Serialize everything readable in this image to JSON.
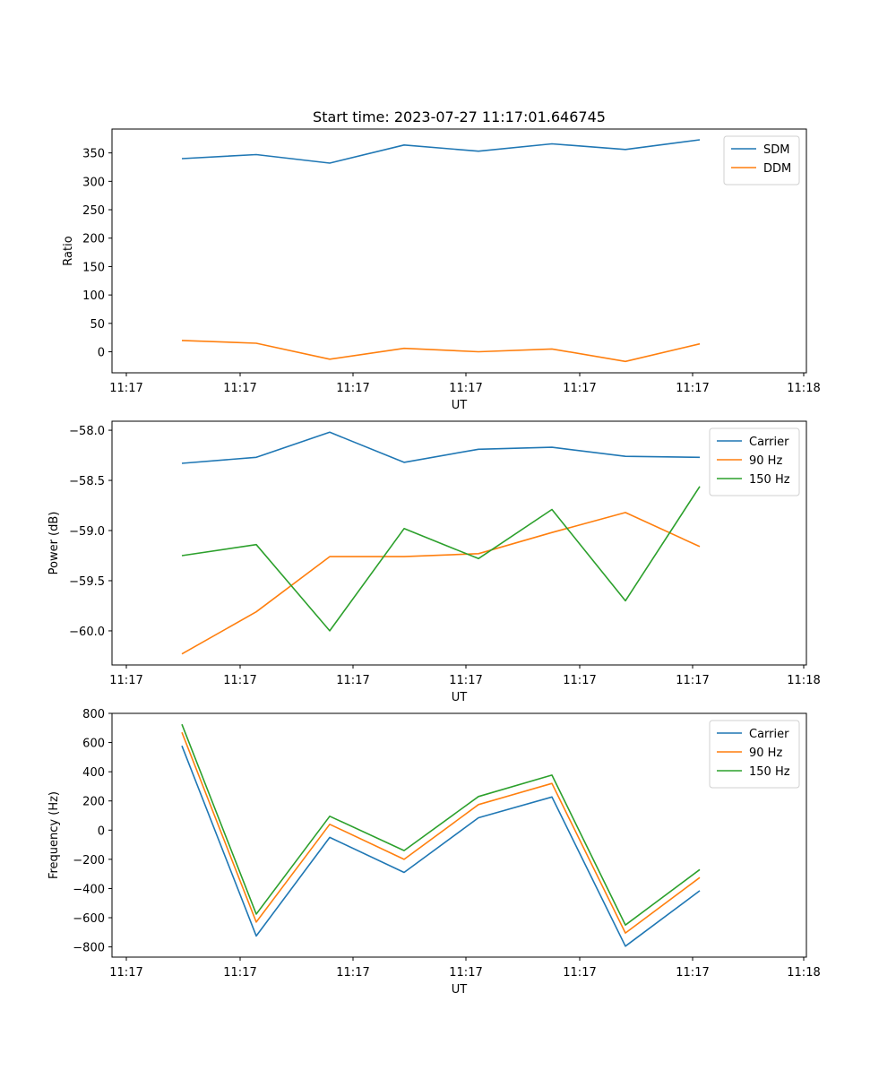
{
  "colors": {
    "blue": "#1f77b4",
    "orange": "#ff7f0e",
    "green": "#2ca02c"
  },
  "chart_data": [
    {
      "type": "line",
      "title": "Start time: 2023-07-27 11:17:01.646745",
      "xlabel": "UT",
      "ylabel": "Ratio",
      "x_tick_labels": [
        "11:17",
        "11:17",
        "11:17",
        "11:17",
        "11:17",
        "11:17",
        "11:18"
      ],
      "ylim": [
        -37,
        392
      ],
      "yticks": [
        0,
        50,
        100,
        150,
        200,
        250,
        300,
        350
      ],
      "legend": "top-right",
      "series": [
        {
          "name": "SDM",
          "color": "#1f77b4",
          "values": [
            340,
            347,
            332,
            364,
            353,
            366,
            356,
            373
          ]
        },
        {
          "name": "DDM",
          "color": "#ff7f0e",
          "values": [
            20,
            15,
            -13,
            6,
            0,
            5,
            -17,
            14
          ]
        }
      ]
    },
    {
      "type": "line",
      "title": "",
      "xlabel": "UT",
      "ylabel": "Power (dB)",
      "x_tick_labels": [
        "11:17",
        "11:17",
        "11:17",
        "11:17",
        "11:17",
        "11:17",
        "11:18"
      ],
      "ylim": [
        -60.34,
        -57.91
      ],
      "yticks": [
        -60.0,
        -59.5,
        -59.0,
        -58.5,
        -58.0
      ],
      "legend": "top-right",
      "series": [
        {
          "name": "Carrier",
          "color": "#1f77b4",
          "values": [
            -58.33,
            -58.27,
            -58.02,
            -58.32,
            -58.19,
            -58.17,
            -58.26,
            -58.27
          ]
        },
        {
          "name": "90 Hz",
          "color": "#ff7f0e",
          "values": [
            -60.23,
            -59.81,
            -59.26,
            -59.26,
            -59.23,
            -59.02,
            -58.82,
            -59.16
          ]
        },
        {
          "name": "150 Hz",
          "color": "#2ca02c",
          "values": [
            -59.25,
            -59.14,
            -60.0,
            -58.98,
            -59.28,
            -58.79,
            -59.7,
            -58.56
          ]
        }
      ]
    },
    {
      "type": "line",
      "title": "",
      "xlabel": "UT",
      "ylabel": "Frequency (Hz)",
      "x_tick_labels": [
        "11:17",
        "11:17",
        "11:17",
        "11:17",
        "11:17",
        "11:17",
        "11:18"
      ],
      "ylim": [
        -870,
        800
      ],
      "yticks": [
        -800,
        -600,
        -400,
        -200,
        0,
        200,
        400,
        600,
        800
      ],
      "legend": "top-right",
      "series": [
        {
          "name": "Carrier",
          "color": "#1f77b4",
          "values": [
            578,
            -725,
            -50,
            -290,
            85,
            227,
            -795,
            -415
          ]
        },
        {
          "name": "90 Hz",
          "color": "#ff7f0e",
          "values": [
            670,
            -630,
            40,
            -200,
            175,
            320,
            -705,
            -325
          ]
        },
        {
          "name": "150 Hz",
          "color": "#2ca02c",
          "values": [
            725,
            -575,
            95,
            -140,
            230,
            377,
            -650,
            -270
          ]
        }
      ]
    }
  ]
}
